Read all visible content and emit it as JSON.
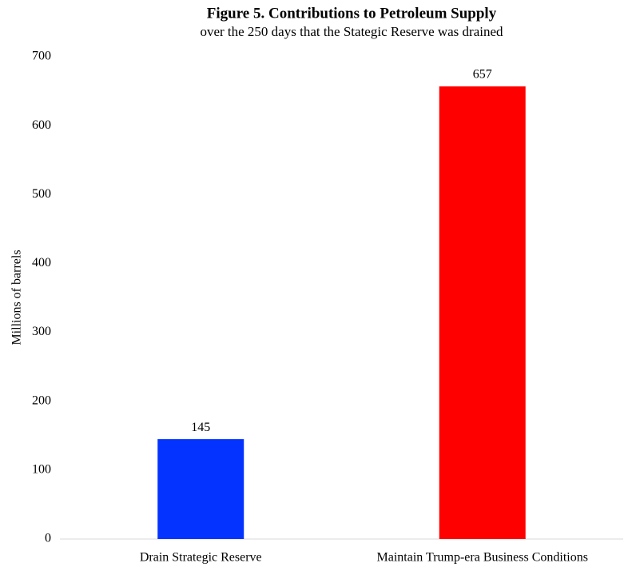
{
  "chart_data": {
    "type": "bar",
    "title": "Figure 5.  Contributions to Petroleum Supply",
    "subtitle": "over the 250 days that the Stategic Reserve was drained",
    "y_label": "Millions of barrels",
    "categories": [
      "Drain Strategic Reserve",
      "Maintain Trump-era Business Conditions"
    ],
    "values": [
      145,
      657
    ],
    "colors": [
      "#0433ff",
      "#ff0000"
    ],
    "ylim": [
      0,
      700
    ],
    "yticks": [
      0,
      100,
      200,
      300,
      400,
      500,
      600,
      700
    ],
    "grid": false
  }
}
